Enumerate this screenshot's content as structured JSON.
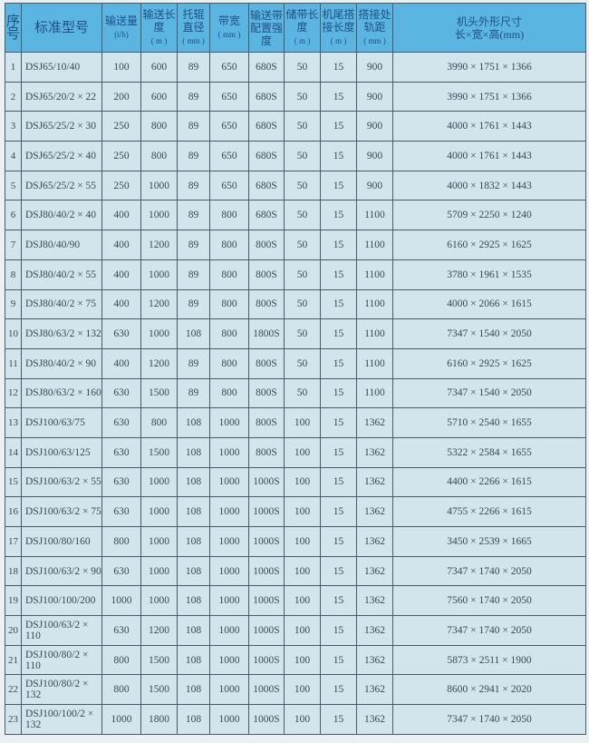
{
  "header": {
    "no": "序号",
    "model": "标准型号",
    "capacity": "输送量",
    "capacity_unit": "(t/h)",
    "length": "输送长度",
    "length_unit": "( m )",
    "roller": "托辊直径",
    "roller_unit": "( mm )",
    "belt_width": "带宽",
    "belt_width_unit": "( mm )",
    "belt_strength": "输送带配置强度",
    "storage": "储带长度",
    "storage_unit": "( m )",
    "tail_lap": "机尾搭接长度",
    "tail_lap_unit": "( m )",
    "lap_rail": "搭接处轨距",
    "lap_rail_unit": "( mm )",
    "head_dims": "机头外形尺寸",
    "head_dims_unit": "长×宽×高(mm)"
  },
  "rows": [
    [
      "1",
      "DSJ65/10/40",
      "100",
      "600",
      "89",
      "650",
      "680S",
      "50",
      "15",
      "900",
      "3990 × 1751 × 1366"
    ],
    [
      "2",
      "DSJ65/20/2 × 22",
      "200",
      "600",
      "89",
      "650",
      "680S",
      "50",
      "15",
      "900",
      "3990 × 1751 × 1366"
    ],
    [
      "3",
      "DSJ65/25/2 × 30",
      "250",
      "800",
      "89",
      "650",
      "680S",
      "50",
      "15",
      "900",
      "4000 × 1761 × 1443"
    ],
    [
      "4",
      "DSJ65/25/2 × 40",
      "250",
      "800",
      "89",
      "650",
      "680S",
      "50",
      "15",
      "900",
      "4000 × 1761 × 1443"
    ],
    [
      "5",
      "DSJ65/25/2 × 55",
      "250",
      "1000",
      "89",
      "650",
      "680S",
      "50",
      "15",
      "900",
      "4000 × 1832 × 1443"
    ],
    [
      "6",
      "DSJ80/40/2 × 40",
      "400",
      "1000",
      "89",
      "800",
      "680S",
      "50",
      "15",
      "1100",
      "5709 × 2250 × 1240"
    ],
    [
      "7",
      "DSJ80/40/90",
      "400",
      "1200",
      "89",
      "800",
      "800S",
      "50",
      "15",
      "1100",
      "6160 × 2925 × 1625"
    ],
    [
      "8",
      "DSJ80/40/2 × 55",
      "400",
      "1000",
      "89",
      "800",
      "800S",
      "50",
      "15",
      "1100",
      "3780 × 1961 × 1535"
    ],
    [
      "9",
      "DSJ80/40/2 × 75",
      "400",
      "1200",
      "89",
      "800",
      "800S",
      "50",
      "15",
      "1100",
      "4000 × 2066 × 1615"
    ],
    [
      "10",
      "DSJ80/63/2 × 132",
      "630",
      "1000",
      "108",
      "800",
      "1800S",
      "50",
      "15",
      "1100",
      "7347 × 1540 × 2050"
    ],
    [
      "11",
      "DSJ80/40/2 × 90",
      "400",
      "1200",
      "89",
      "800",
      "800S",
      "50",
      "15",
      "1100",
      "6160 × 2925 × 1625"
    ],
    [
      "12",
      "DSJ80/63/2 × 160",
      "630",
      "1500",
      "89",
      "800",
      "800S",
      "50",
      "15",
      "1100",
      "7347 × 1540 × 2050"
    ],
    [
      "13",
      "DSJ100/63/75",
      "630",
      "800",
      "108",
      "1000",
      "800S",
      "100",
      "15",
      "1362",
      "5710 × 2540 × 1655"
    ],
    [
      "14",
      "DSJ100/63/125",
      "630",
      "1500",
      "108",
      "1000",
      "800S",
      "100",
      "15",
      "1362",
      "5322 × 2584 × 1655"
    ],
    [
      "15",
      "DSJ100/63/2 × 55",
      "630",
      "1000",
      "108",
      "1000",
      "1000S",
      "100",
      "15",
      "1362",
      "4400 × 2266 × 1615"
    ],
    [
      "16",
      "DSJ100/63/2 × 75",
      "630",
      "1000",
      "108",
      "1000",
      "1000S",
      "100",
      "15",
      "1362",
      "4755 × 2266 × 1615"
    ],
    [
      "17",
      "DSJ100/80/160",
      "800",
      "1000",
      "108",
      "1000",
      "1000S",
      "100",
      "15",
      "1362",
      "3450 × 2539 × 1665"
    ],
    [
      "18",
      "DSJ100/63/2 × 90",
      "630",
      "1000",
      "108",
      "1000",
      "1000S",
      "100",
      "15",
      "1362",
      "7347 × 1740 × 2050"
    ],
    [
      "19",
      "DSJ100/100/200",
      "1000",
      "1000",
      "108",
      "1000",
      "1000S",
      "100",
      "15",
      "1362",
      "7560 × 1740 × 2050"
    ],
    [
      "20",
      "DSJ100/63/2 × 110",
      "630",
      "1200",
      "108",
      "1000",
      "1000S",
      "100",
      "15",
      "1362",
      "7347 × 1740 × 2050"
    ],
    [
      "21",
      "DSJ100/80/2 × 110",
      "800",
      "1500",
      "108",
      "1000",
      "1000S",
      "100",
      "15",
      "1362",
      "5873 × 2511 × 1900"
    ],
    [
      "22",
      "DSJ100/80/2 × 132",
      "800",
      "1500",
      "108",
      "1000",
      "1000S",
      "100",
      "15",
      "1362",
      "8600 × 2941 × 2020"
    ],
    [
      "23",
      "DSJ100/100/2 × 132",
      "1000",
      "1800",
      "108",
      "1000",
      "1000S",
      "100",
      "15",
      "1362",
      "7347 × 1740 × 2050"
    ]
  ],
  "colors": {
    "header_bg": "#5ab6e0",
    "body_bg": "#d3e5ec",
    "header_text": "#1f4f86"
  }
}
